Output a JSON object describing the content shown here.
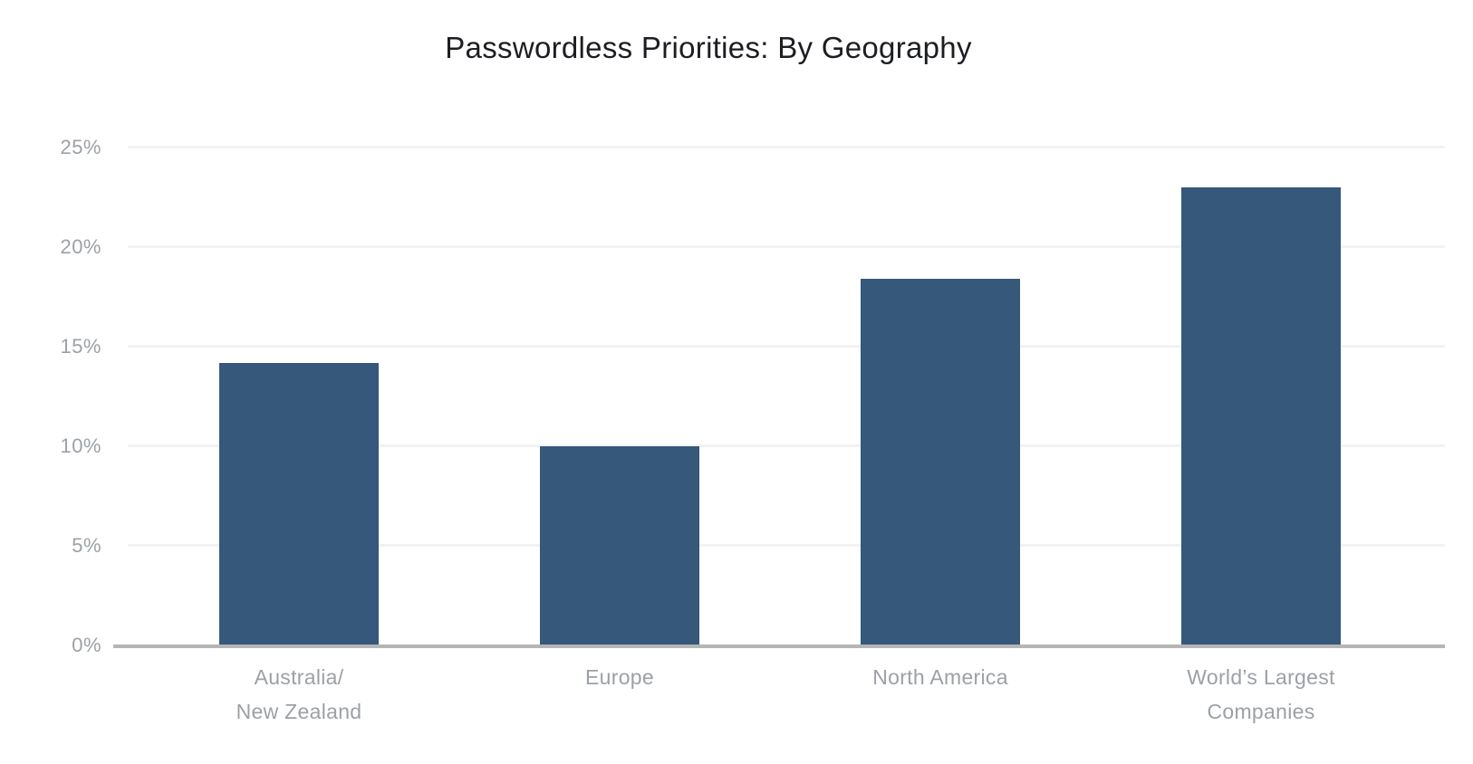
{
  "chart_data": {
    "type": "bar",
    "title": "Passwordless Priorities: By Geography",
    "categories": [
      "Australia/New Zealand",
      "Europe",
      "North America",
      "World’s Largest Companies"
    ],
    "category_label_lines": [
      [
        "Australia/",
        "New Zealand"
      ],
      [
        "Europe"
      ],
      [
        "North America"
      ],
      [
        "World’s Largest",
        "Companies"
      ]
    ],
    "values": [
      14.2,
      10,
      18.4,
      23
    ],
    "value_unit": "%",
    "xlabel": "",
    "ylabel": "",
    "ytick_values": [
      0,
      5,
      10,
      15,
      20,
      25
    ],
    "ytick_labels": [
      "0%",
      "5%",
      "10%",
      "15%",
      "20%",
      "25%"
    ],
    "ylim": [
      0,
      25
    ],
    "grid": true,
    "legend": false,
    "colors": {
      "bar": "#35587B",
      "title": "#1C1E22",
      "axis_label": "#9CA1A7",
      "gridline": "#F1F2F2",
      "axis_line": "#B5B5B5",
      "background": "#FFFFFF"
    }
  }
}
